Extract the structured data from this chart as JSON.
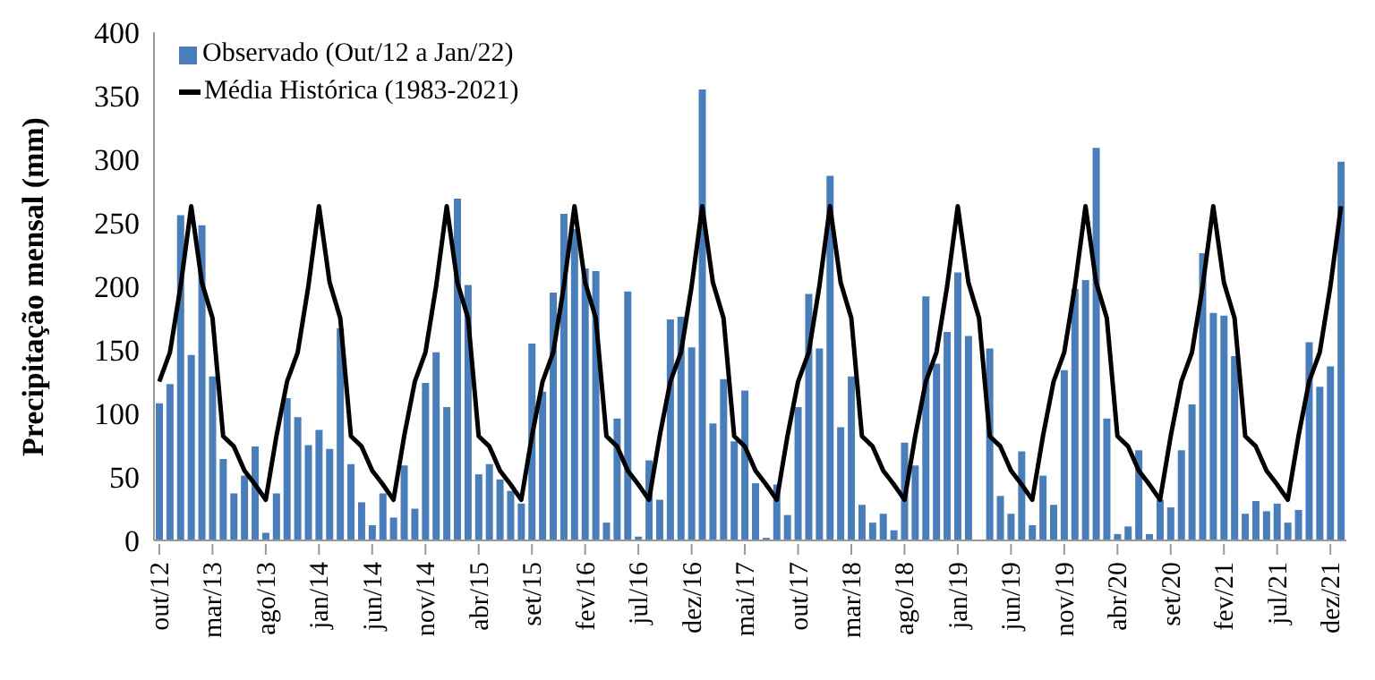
{
  "chart_data": {
    "type": "bar",
    "ylabel": "Precipitação mensal (mm)",
    "categories": [
      "out/12",
      null,
      null,
      null,
      null,
      "mar/13",
      null,
      null,
      null,
      null,
      "ago/13",
      null,
      null,
      null,
      null,
      "jan/14",
      null,
      null,
      null,
      null,
      "jun/14",
      null,
      null,
      null,
      null,
      "nov/14",
      null,
      null,
      null,
      null,
      "abr/15",
      null,
      null,
      null,
      null,
      "set/15",
      null,
      null,
      null,
      null,
      "fev/16",
      null,
      null,
      null,
      null,
      "jul/16",
      null,
      null,
      null,
      null,
      "dez/16",
      null,
      null,
      null,
      null,
      "mai/17",
      null,
      null,
      null,
      null,
      "out/17",
      null,
      null,
      null,
      null,
      "mar/18",
      null,
      null,
      null,
      null,
      "ago/18",
      null,
      null,
      null,
      null,
      "jan/19",
      null,
      null,
      null,
      null,
      "jun/19",
      null,
      null,
      null,
      null,
      "nov/19",
      null,
      null,
      null,
      null,
      "abr/20",
      null,
      null,
      null,
      null,
      "set/20",
      null,
      null,
      null,
      null,
      "fev/21",
      null,
      null,
      null,
      null,
      "jul/21",
      null,
      null,
      null,
      null,
      "dez/21",
      null
    ],
    "series": [
      {
        "name": "Observado (Out/12 a Jan/22)",
        "color": "#4a7ebb",
        "values": [
          108,
          123,
          256,
          146,
          248,
          129,
          64,
          37,
          51,
          74,
          6,
          37,
          112,
          97,
          75,
          87,
          72,
          167,
          60,
          30,
          12,
          37,
          18,
          59,
          25,
          124,
          148,
          105,
          269,
          201,
          52,
          60,
          48,
          39,
          29,
          155,
          117,
          195,
          257,
          245,
          214,
          212,
          14,
          96,
          196,
          3,
          63,
          32,
          174,
          176,
          152,
          355,
          92,
          127,
          78,
          118,
          45,
          2,
          44,
          20,
          105,
          194,
          151,
          287,
          89,
          129,
          28,
          14,
          21,
          8,
          77,
          59,
          192,
          139,
          164,
          211,
          161,
          null,
          151,
          35,
          21,
          70,
          12,
          51,
          28,
          134,
          198,
          205,
          309,
          96,
          5,
          11,
          71,
          5,
          32,
          26,
          71,
          107,
          226,
          179,
          177,
          145,
          21,
          31,
          23,
          29,
          14,
          24,
          156,
          121,
          137,
          298
        ]
      },
      {
        "name": "Média Histórica (1983-2021)",
        "type": "line",
        "color": "#000000",
        "values": [
          125,
          148,
          200,
          263,
          203,
          175,
          82,
          74,
          55,
          44,
          32,
          82,
          125,
          148,
          200,
          263,
          203,
          175,
          82,
          74,
          55,
          44,
          32,
          82,
          125,
          148,
          200,
          263,
          203,
          175,
          82,
          74,
          55,
          44,
          32,
          82,
          125,
          148,
          200,
          263,
          203,
          175,
          82,
          74,
          55,
          44,
          32,
          82,
          125,
          148,
          200,
          263,
          203,
          175,
          82,
          74,
          55,
          44,
          32,
          82,
          125,
          148,
          200,
          263,
          203,
          175,
          82,
          74,
          55,
          44,
          32,
          82,
          125,
          148,
          200,
          263,
          203,
          175,
          82,
          74,
          55,
          44,
          32,
          82,
          125,
          148,
          200,
          263,
          203,
          175,
          82,
          74,
          55,
          44,
          32,
          82,
          125,
          148,
          200,
          263,
          203,
          175,
          82,
          74,
          55,
          44,
          32,
          82,
          125,
          148,
          200,
          263
        ]
      }
    ],
    "ylim": [
      0,
      400
    ],
    "yticks": [
      0,
      50,
      100,
      150,
      200,
      250,
      300,
      350,
      400
    ],
    "legend": "top left",
    "marker": "none"
  }
}
